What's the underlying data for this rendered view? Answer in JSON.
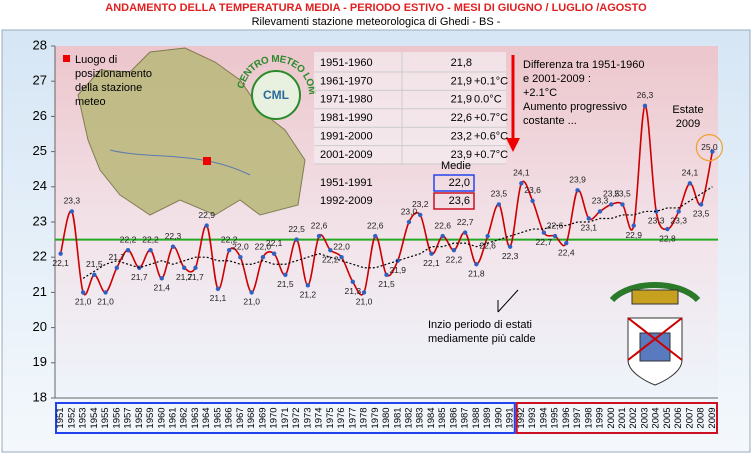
{
  "chart_data": {
    "type": "line",
    "title": "ANDAMENTO DELLA TEMPERATURA MEDIA - PERIODO ESTIVO - MESI DI GIUGNO / LUGLIO /AGOSTO",
    "subtitle": "Rilevamenti stazione meteorologica di Ghedi - BS -",
    "categories": [
      "1951",
      "1952",
      "1953",
      "1954",
      "1955",
      "1956",
      "1957",
      "1958",
      "1959",
      "1960",
      "1961",
      "1962",
      "1963",
      "1964",
      "1965",
      "1966",
      "1967",
      "1968",
      "1969",
      "1970",
      "1971",
      "1972",
      "1973",
      "1974",
      "1975",
      "1976",
      "1977",
      "1978",
      "1979",
      "1980",
      "1981",
      "1982",
      "1983",
      "1984",
      "1985",
      "1986",
      "1987",
      "1988",
      "1989",
      "1990",
      "1991",
      "1992",
      "1993",
      "1994",
      "1995",
      "1996",
      "1997",
      "1998",
      "1999",
      "2000",
      "2001",
      "2002",
      "2003",
      "2004",
      "2005",
      "2006",
      "2007",
      "2008",
      "2009"
    ],
    "series": [
      {
        "color": "#cc0000",
        "values": [
          22.1,
          23.3,
          21.0,
          21.5,
          21.0,
          21.7,
          22.2,
          21.7,
          22.2,
          21.4,
          22.3,
          21.7,
          21.7,
          22.9,
          21.1,
          22.2,
          22.0,
          21.0,
          22.0,
          22.1,
          21.5,
          22.5,
          21.2,
          22.6,
          22.2,
          22.0,
          21.3,
          21.0,
          22.6,
          21.5,
          21.9,
          23.0,
          23.2,
          22.1,
          22.6,
          22.2,
          22.7,
          21.8,
          22.6,
          23.5,
          22.3,
          24.1,
          23.6,
          22.7,
          22.6,
          22.4,
          23.9,
          23.1,
          23.3,
          23.5,
          23.5,
          22.9,
          26.3,
          23.3,
          22.8,
          23.3,
          24.1,
          23.5,
          25.0
        ],
        "value_labels": [
          "22,1",
          "23,3",
          "21,0",
          "21,5",
          "21,0",
          "21,7",
          "22,2",
          "21,7",
          "22,2",
          "21,4",
          "22,3",
          "21,7",
          "21,7",
          "22,9",
          "21,1",
          "22,2",
          "22,0",
          "21,0",
          "22,0",
          "22,1",
          "21,5",
          "22,5",
          "21,2",
          "22,6",
          "22,2",
          "22,0",
          "21,3",
          "21,0",
          "22,6",
          "21,5",
          "21,9",
          "23,0",
          "23,2",
          "22,1",
          "22,6",
          "22,2",
          "22,7",
          "21,8",
          "22,6",
          "23,5",
          "22,3",
          "24,1",
          "23,6",
          "22,7",
          "22,6",
          "22,4",
          "23,9",
          "23,1",
          "23,3",
          "23,5",
          "23,5",
          "22,9",
          "26,3",
          "23,3",
          "22,8",
          "23,3",
          "24,1",
          "23,5",
          "25,0"
        ]
      },
      {
        "color": "#000000",
        "dashed": true,
        "values": [
          null,
          null,
          21.4,
          21.6,
          21.8,
          21.9,
          21.8,
          21.7,
          21.8,
          21.9,
          21.8,
          21.9,
          22.0,
          22.0,
          21.9,
          21.9,
          21.8,
          21.8,
          21.9,
          21.8,
          21.8,
          21.9,
          22.0,
          22.1,
          22.0,
          21.9,
          21.8,
          21.7,
          21.7,
          21.8,
          21.9,
          22.0,
          22.1,
          22.3,
          22.3,
          22.4,
          22.4,
          22.3,
          22.4,
          22.5,
          22.6,
          22.7,
          22.8,
          22.8,
          22.9,
          22.9,
          23.0,
          23.0,
          23.1,
          23.1,
          23.2,
          23.2,
          23.3,
          23.3,
          23.4,
          23.4,
          23.6,
          23.8,
          24.0
        ]
      }
    ],
    "reference_line": {
      "value": 22.5,
      "color": "#22aa22"
    },
    "ylim": [
      18,
      28
    ],
    "yticks": [
      18,
      19,
      20,
      21,
      22,
      23,
      24,
      25,
      26,
      27,
      28
    ],
    "table": [
      [
        "1951-1960",
        "21,8",
        ""
      ],
      [
        "1961-1970",
        "21,9",
        "+0.1°C"
      ],
      [
        "1971-1980",
        "21,9",
        "0.0°C"
      ],
      [
        "1981-1990",
        "22,6",
        "+0.7°C"
      ],
      [
        "1991-2000",
        "23,2",
        "+0.6°C"
      ],
      [
        "2001-2009",
        "23,9",
        "+0.7°C"
      ]
    ],
    "medie_label": "Medie",
    "medie": [
      [
        "1951-1991",
        "22,0"
      ],
      [
        "1992-2009",
        "23,6"
      ]
    ],
    "map_label": [
      "Luogo di",
      "posizionamento",
      "della stazione",
      "meteo"
    ],
    "logo_text": "CENTRO METEO LOMBARDO",
    "logo_initials": "CML",
    "note_difference": [
      "Differenza tra 1951-1960",
      "e 2001-2009 :",
      "+2.1°C",
      "Aumento progressivo",
      "costante ..."
    ],
    "note_2009": [
      "Estate",
      "2009"
    ],
    "note_trend": [
      "Inzio periodo di estati",
      "mediamente più calde"
    ]
  }
}
